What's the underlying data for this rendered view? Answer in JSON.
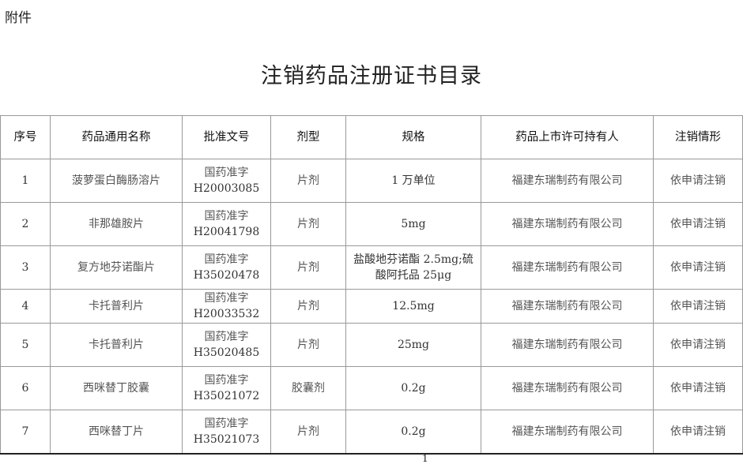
{
  "attachment_label": "附件",
  "title": "注销药品注册证书目录",
  "table": {
    "headers": [
      "序号",
      "药品通用名称",
      "批准文号",
      "剂型",
      "规格",
      "药品上市许可持有人",
      "注销情形"
    ],
    "rows": [
      {
        "no": "1",
        "name": "菠萝蛋白酶肠溶片",
        "approval_prefix": "国药准字",
        "approval_no": "H20003085",
        "form": "片剂",
        "spec": "1 万单位",
        "holder": "福建东瑞制药有限公司",
        "status": "依申请注销"
      },
      {
        "no": "2",
        "name": "非那雄胺片",
        "approval_prefix": "国药准字",
        "approval_no": "H20041798",
        "form": "片剂",
        "spec": "5mg",
        "holder": "福建东瑞制药有限公司",
        "status": "依申请注销"
      },
      {
        "no": "3",
        "name": "复方地芬诺酯片",
        "approval_prefix": "国药准字",
        "approval_no": "H35020478",
        "form": "片剂",
        "spec": "盐酸地芬诺酯 2.5mg;硫酸阿托品 25μg",
        "holder": "福建东瑞制药有限公司",
        "status": "依申请注销"
      },
      {
        "no": "4",
        "name": "卡托普利片",
        "approval_prefix": "国药准字",
        "approval_no": "H20033532",
        "form": "片剂",
        "spec": "12.5mg",
        "holder": "福建东瑞制药有限公司",
        "status": "依申请注销"
      },
      {
        "no": "5",
        "name": "卡托普利片",
        "approval_prefix": "国药准字",
        "approval_no": "H35020485",
        "form": "片剂",
        "spec": "25mg",
        "holder": "福建东瑞制药有限公司",
        "status": "依申请注销"
      },
      {
        "no": "6",
        "name": "西咪替丁胶囊",
        "approval_prefix": "国药准字",
        "approval_no": "H35021072",
        "form": "胶囊剂",
        "spec": "0.2g",
        "holder": "福建东瑞制药有限公司",
        "status": "依申请注销"
      },
      {
        "no": "7",
        "name": "西咪替丁片",
        "approval_prefix": "国药准字",
        "approval_no": "H35021073",
        "form": "片剂",
        "spec": "0.2g",
        "holder": "福建东瑞制药有限公司",
        "status": "依申请注销"
      }
    ]
  },
  "page_number": "1"
}
